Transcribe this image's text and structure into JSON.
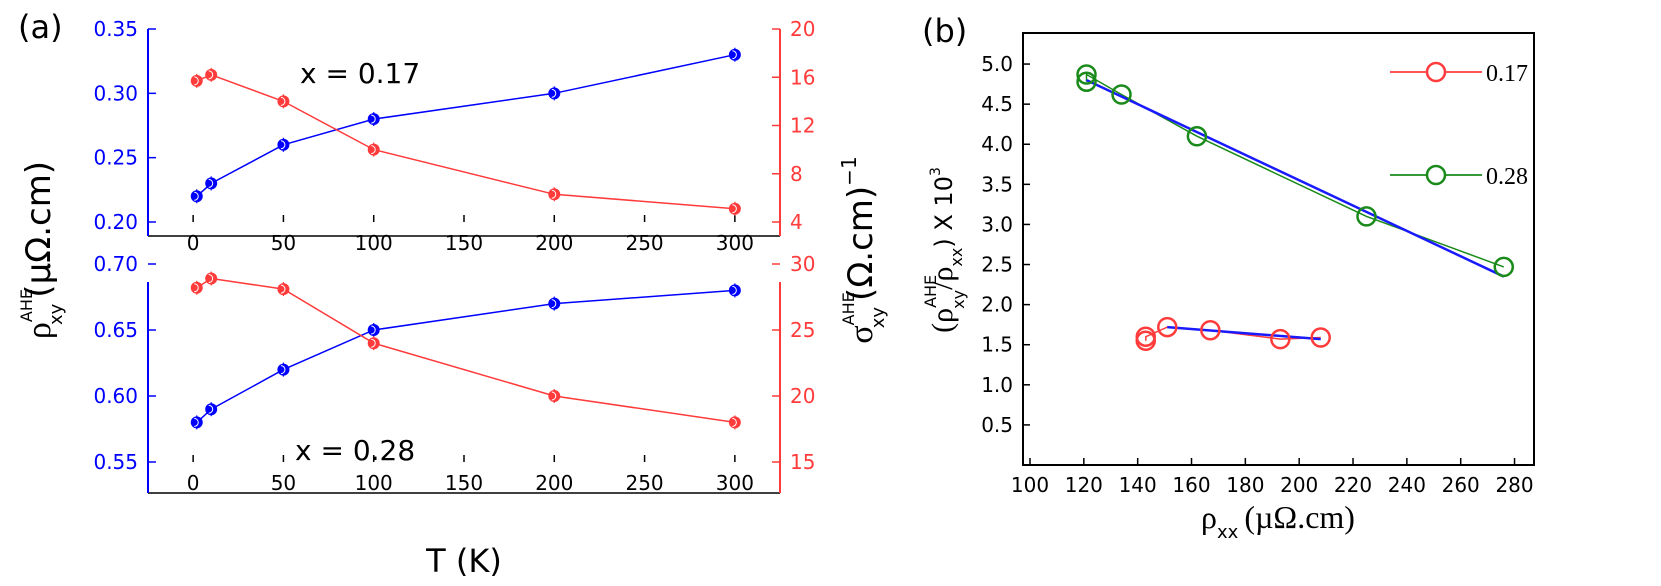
{
  "colors": {
    "blue": "#0000ff",
    "red": "#ff3b3b",
    "green": "#1a8a1a",
    "fit_blue": "#1a1aff",
    "black": "#000000"
  },
  "chart_data": [
    {
      "type": "line",
      "panel": "(a)",
      "annotation": "x = 0.17",
      "x": [
        2,
        10,
        50,
        100,
        200,
        300
      ],
      "xticks": [
        "0",
        "50",
        "100",
        "150",
        "200",
        "250",
        "300"
      ],
      "xlim": [
        -25,
        325
      ],
      "left_axis": {
        "label_main": "ρ",
        "label_sup": "AHE",
        "label_sub": "xy",
        "label_rest": "(µΩ.cm)",
        "ylim": [
          0.2,
          0.35
        ],
        "ticks": [
          "0.20",
          "0.25",
          "0.30",
          "0.35"
        ]
      },
      "right_axis": {
        "label_main": "σ",
        "label_sup": "AHE",
        "label_sub": "xy",
        "label_rest": "(Ω.cm)",
        "label_exp": "−1",
        "ylim": [
          4,
          20
        ],
        "ticks": [
          "4",
          "8",
          "12",
          "16",
          "20"
        ]
      },
      "series": [
        {
          "axis": "left",
          "color": "blue",
          "values": [
            0.22,
            0.23,
            0.26,
            0.28,
            0.3,
            0.33
          ]
        },
        {
          "axis": "right",
          "color": "red",
          "values": [
            15.7,
            16.2,
            14,
            10,
            6.3,
            5.1
          ]
        }
      ]
    },
    {
      "type": "line",
      "annotation": "x = 0.28",
      "x": [
        2,
        10,
        50,
        100,
        200,
        300
      ],
      "xticks": [
        "0",
        "50",
        "100",
        "150",
        "200",
        "250",
        "300"
      ],
      "xlim": [
        -25,
        325
      ],
      "xlabel": "T (K)",
      "left_axis": {
        "ylim": [
          0.55,
          0.7
        ],
        "ticks": [
          "0.55",
          "0.60",
          "0.65",
          "0.70"
        ]
      },
      "right_axis": {
        "ylim": [
          15,
          30
        ],
        "ticks": [
          "15",
          "20",
          "25",
          "30"
        ]
      },
      "series": [
        {
          "axis": "left",
          "color": "blue",
          "values": [
            0.58,
            0.59,
            0.62,
            0.65,
            0.67,
            0.68
          ]
        },
        {
          "axis": "right",
          "color": "red",
          "values": [
            28.2,
            28.9,
            28.1,
            24,
            20,
            18
          ]
        }
      ]
    },
    {
      "type": "scatter",
      "panel": "(b)",
      "xlabel_main": "ρ",
      "xlabel_sub": "xx",
      "xlabel_rest": "(µΩ.cm)",
      "ylabel_parts": [
        "(ρ",
        "AHE",
        "xy",
        "/ρ",
        "xx",
        ") X 10",
        "3"
      ],
      "xlim": [
        100,
        285
      ],
      "ylim": [
        0,
        5.3
      ],
      "xticks": [
        "100",
        "120",
        "140",
        "160",
        "180",
        "200",
        "220",
        "240",
        "260",
        "280"
      ],
      "yticks": [
        "0.5",
        "1.0",
        "1.5",
        "2.0",
        "2.5",
        "3.0",
        "3.5",
        "4.0",
        "4.5",
        "5.0"
      ],
      "legend_placement": "top-right",
      "series": [
        {
          "name": "0.17",
          "color": "red",
          "x": [
            143,
            143,
            151,
            167,
            193,
            208
          ],
          "y": [
            1.55,
            1.6,
            1.72,
            1.68,
            1.57,
            1.59
          ],
          "fit": {
            "x": [
              151,
              208
            ],
            "y": [
              1.72,
              1.57
            ]
          }
        },
        {
          "name": "0.28",
          "color": "green",
          "x": [
            121,
            121,
            134,
            162,
            225,
            276
          ],
          "y": [
            4.78,
            4.87,
            4.62,
            4.1,
            3.1,
            2.47
          ],
          "fit": {
            "x": [
              121,
              276
            ],
            "y": [
              4.8,
              2.35
            ]
          }
        }
      ]
    }
  ]
}
